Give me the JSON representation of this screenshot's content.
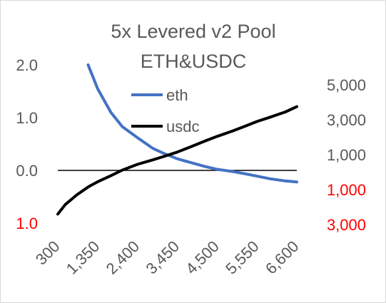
{
  "chart_data": {
    "type": "line",
    "title": [
      "5x Levered v2 Pool",
      "ETH&USDC"
    ],
    "xlabel": "",
    "ylabel": "",
    "x_tick_labels": [
      "300",
      "1,350",
      "2,400",
      "3,450",
      "4,500",
      "5,550",
      "6,600"
    ],
    "x_range": [
      300,
      6600
    ],
    "left_axis": {
      "range": [
        -1.0,
        2.0
      ],
      "ticks": [
        {
          "value": 2.0,
          "label": "2.0",
          "color": "#595959"
        },
        {
          "value": 1.0,
          "label": "1.0",
          "color": "#595959"
        },
        {
          "value": 0.0,
          "label": "0.0",
          "color": "#595959"
        },
        {
          "value": -1.0,
          "label": "1.0",
          "color": "#ff0000"
        }
      ]
    },
    "right_axis": {
      "range": [
        -3000,
        5000
      ],
      "ticks": [
        {
          "value": 5000,
          "label": "5,000",
          "color": "#595959"
        },
        {
          "value": 3000,
          "label": "3,000",
          "color": "#595959"
        },
        {
          "value": 1000,
          "label": "1,000",
          "color": "#595959"
        },
        {
          "value": -1000,
          "label": "1,000",
          "color": "#ff0000"
        },
        {
          "value": -3000,
          "label": "3,000",
          "color": "#ff0000"
        }
      ]
    },
    "zero_line": 0,
    "legend": {
      "placement": "center-top"
    },
    "series": [
      {
        "name": "eth",
        "axis": "left",
        "color": "#4472c4",
        "x": [
          1100,
          1350,
          1700,
          2000,
          2400,
          2800,
          3100,
          3450,
          3800,
          4200,
          4500,
          4900,
          5200,
          5550,
          5900,
          6300,
          6600
        ],
        "values": [
          2.0,
          1.55,
          1.1,
          0.83,
          0.62,
          0.42,
          0.32,
          0.22,
          0.15,
          0.07,
          0.02,
          -0.02,
          -0.06,
          -0.11,
          -0.16,
          -0.2,
          -0.22
        ]
      },
      {
        "name": "usdc",
        "axis": "right",
        "color": "#000000",
        "x": [
          300,
          500,
          800,
          1100,
          1350,
          1700,
          2000,
          2400,
          2800,
          3100,
          3450,
          3800,
          4200,
          4500,
          4900,
          5200,
          5550,
          5900,
          6300,
          6600
        ],
        "values": [
          -2400,
          -1850,
          -1300,
          -850,
          -550,
          -200,
          120,
          450,
          700,
          900,
          1150,
          1450,
          1800,
          2050,
          2350,
          2600,
          2900,
          3150,
          3450,
          3750
        ]
      }
    ]
  }
}
